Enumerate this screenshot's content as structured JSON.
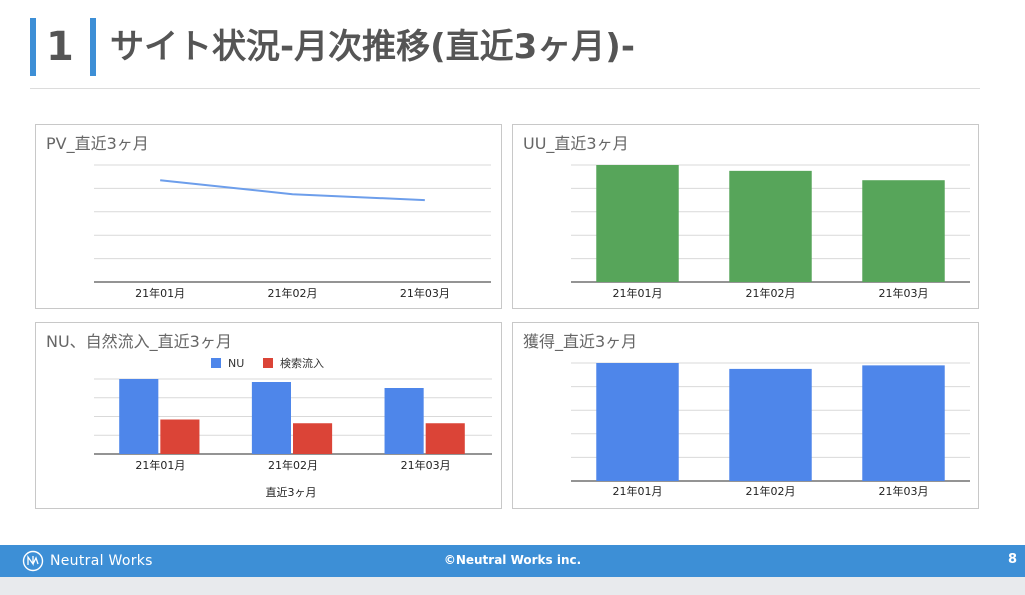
{
  "slide": {
    "number": "1",
    "title": "サイト状況-月次推移(直近3ヶ月)-"
  },
  "footer": {
    "brand": "Neutral Works",
    "copyright": "©Neutral Works inc.",
    "page": "8"
  },
  "colors": {
    "accent": "#3d8fd6",
    "line": "#6d9eeb",
    "green": "#57a55a",
    "blue": "#4e86ea",
    "red": "#db4437"
  },
  "chart_data": [
    {
      "id": "pv",
      "type": "line",
      "title": "PV_直近3ヶ月",
      "categories": [
        "21年01月",
        "21年02月",
        "21年03月"
      ],
      "series": [
        {
          "values": [
            0.87,
            0.75,
            0.7
          ]
        }
      ],
      "ylim": [
        0,
        1
      ],
      "grid": true
    },
    {
      "id": "uu",
      "type": "bar",
      "title": "UU_直近3ヶ月",
      "categories": [
        "21年01月",
        "21年02月",
        "21年03月"
      ],
      "series": [
        {
          "values": [
            1.0,
            0.95,
            0.87
          ]
        }
      ],
      "ylim": [
        0,
        1.0
      ],
      "grid": true
    },
    {
      "id": "nu",
      "type": "bar",
      "title": "NU、自然流入_直近3ヶ月",
      "xlabel": "直近3ヶ月",
      "legend_position": "top",
      "categories": [
        "21年01月",
        "21年02月",
        "21年03月"
      ],
      "series": [
        {
          "name": "NU",
          "values": [
            1.0,
            0.96,
            0.88
          ]
        },
        {
          "name": "検索流入",
          "values": [
            0.46,
            0.41,
            0.41
          ]
        }
      ],
      "ylim": [
        0,
        1.0
      ],
      "grid": true
    },
    {
      "id": "acq",
      "type": "bar",
      "title": "獲得_直近3ヶ月",
      "categories": [
        "21年01月",
        "21年02月",
        "21年03月"
      ],
      "series": [
        {
          "values": [
            1.0,
            0.95,
            0.98
          ]
        }
      ],
      "ylim": [
        0,
        1.0
      ],
      "grid": true
    }
  ]
}
